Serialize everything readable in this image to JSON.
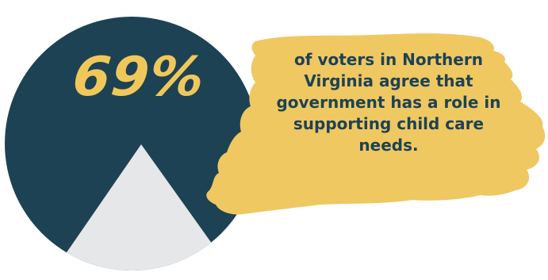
{
  "stat": {
    "value": "69%",
    "description": "of voters in Northern Virginia agree that government has a role in supporting child care needs."
  },
  "colors": {
    "circle": "#1d4254",
    "triangle": "#e6e7e9",
    "brush": "#efc862",
    "value_text": "#f0c85a",
    "description_text": "#1d4254"
  },
  "chart_data": {
    "type": "pie",
    "categories": [
      "agree"
    ],
    "values": [
      69
    ]
  }
}
